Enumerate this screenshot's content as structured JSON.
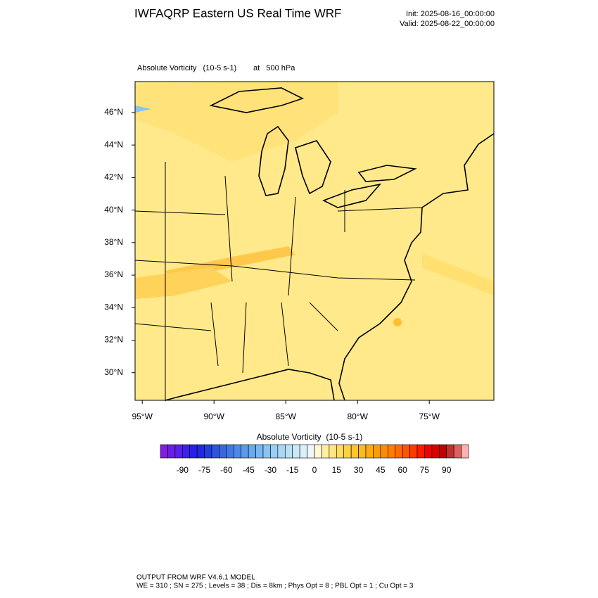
{
  "header": {
    "title": "IWFAQRP Eastern US Real Time WRF",
    "init": "Init: 2025-08-16_00:00:00",
    "valid": "Valid: 2025-08-22_00:00:00"
  },
  "chart_data": {
    "type": "map",
    "title": "Absolute Vorticity   (10-5 s-1)",
    "subtitle": "at   500 hPa",
    "xlim": [
      -95.5,
      -70.5
    ],
    "ylim": [
      28.3,
      47.9
    ],
    "xticks": [
      {
        "value": -95,
        "label": "95°W"
      },
      {
        "value": -90,
        "label": "90°W"
      },
      {
        "value": -85,
        "label": "85°W"
      },
      {
        "value": -80,
        "label": "80°W"
      },
      {
        "value": -75,
        "label": "75°W"
      }
    ],
    "yticks": [
      {
        "value": 30,
        "label": "30°N"
      },
      {
        "value": 32,
        "label": "32°N"
      },
      {
        "value": 34,
        "label": "34°N"
      },
      {
        "value": 36,
        "label": "36°N"
      },
      {
        "value": 38,
        "label": "38°N"
      },
      {
        "value": 40,
        "label": "40°N"
      },
      {
        "value": 42,
        "label": "42°N"
      },
      {
        "value": 44,
        "label": "44°N"
      },
      {
        "value": 46,
        "label": "46°N"
      }
    ]
  },
  "colorbar": {
    "title": "Absolute Vorticity  (10-5 s-1)",
    "lim": [
      -105,
      105
    ],
    "ticks": [
      -90,
      -75,
      -60,
      -45,
      -30,
      -15,
      0,
      15,
      30,
      45,
      60,
      75,
      90
    ],
    "colors": [
      "#7f1fe0",
      "#6a1fe6",
      "#5a1feb",
      "#3f1ff0",
      "#2a1fe8",
      "#1f2ae0",
      "#1f3fe0",
      "#2f55e0",
      "#3a66e0",
      "#4477e4",
      "#4f88e8",
      "#5a99ec",
      "#66aaf0",
      "#77b8f2",
      "#88c4f2",
      "#99cff4",
      "#aad8f4",
      "#bbe0f5",
      "#cce8f7",
      "#ddf0f9",
      "#eef7fb",
      "#fff8d0",
      "#fff0a0",
      "#ffe680",
      "#ffdc60",
      "#ffd040",
      "#ffc430",
      "#ffb820",
      "#ffaa10",
      "#ff9c00",
      "#ff8c00",
      "#ff7c00",
      "#ff6a00",
      "#ff5500",
      "#ff3a00",
      "#ff1a00",
      "#f00000",
      "#d80000",
      "#c00000",
      "#c03030",
      "#e06060",
      "#ffb0b0"
    ]
  },
  "footer": {
    "line1": "OUTPUT FROM WRF V4.6.1 MODEL",
    "line2": "WE = 310 ; SN = 275 ; Levels = 38 ; Dis = 8km ; Phys Opt = 8 ; PBL Opt = 1 ; Cu Opt = 3"
  }
}
